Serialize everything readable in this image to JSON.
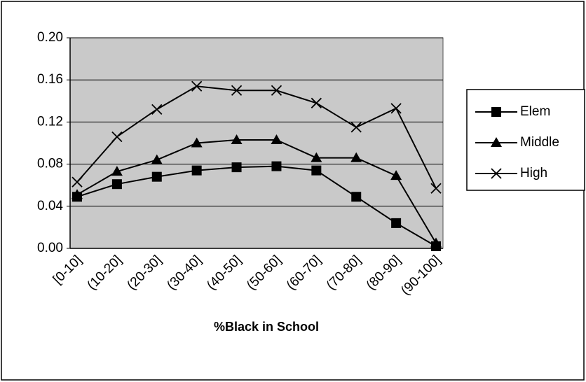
{
  "chart_data": {
    "type": "line",
    "x_label": "%Black in School",
    "categories": [
      "[0-10]",
      "(10-20]",
      "(20-30]",
      "(30-40]",
      "(40-50]",
      "(50-60]",
      "(60-70]",
      "(70-80]",
      "(80-90]",
      "(90-100]"
    ],
    "series": [
      {
        "name": "Elem",
        "color": "#000000",
        "marker": "square",
        "values": [
          0.049,
          0.061,
          0.068,
          0.074,
          0.077,
          0.078,
          0.074,
          0.049,
          0.024,
          0.002
        ]
      },
      {
        "name": "Middle",
        "color": "#000000",
        "marker": "triangle",
        "values": [
          0.051,
          0.073,
          0.084,
          0.1,
          0.103,
          0.103,
          0.086,
          0.086,
          0.069,
          0.005
        ]
      },
      {
        "name": "High",
        "color": "#000000",
        "marker": "x",
        "values": [
          0.063,
          0.106,
          0.132,
          0.154,
          0.15,
          0.15,
          0.138,
          0.115,
          0.133,
          0.057
        ]
      }
    ],
    "ylim": [
      0,
      0.2
    ],
    "yticks": [
      {
        "value": 0,
        "label": "0.00"
      },
      {
        "value": 0.04,
        "label": "0.04"
      },
      {
        "value": 0.08,
        "label": "0.08"
      },
      {
        "value": 0.12,
        "label": "0.12"
      },
      {
        "value": 0.16,
        "label": "0.16"
      },
      {
        "value": 0.2,
        "label": "0.20"
      }
    ],
    "grid": true,
    "legend": "right"
  }
}
